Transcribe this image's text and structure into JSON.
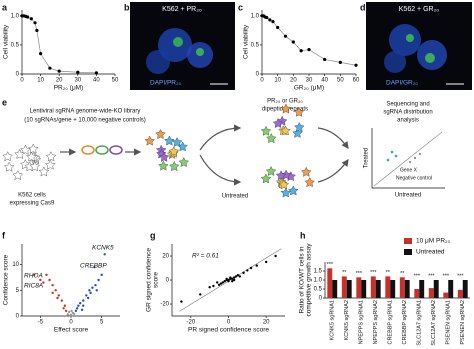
{
  "panel_labels": [
    "a",
    "b",
    "c",
    "d",
    "e",
    "f",
    "g",
    "h"
  ],
  "panel_b": {
    "title": "K562 + PR₂₀",
    "caption": "DAPI/PR₂₀"
  },
  "panel_d": {
    "title": "K562 + GR₂₀",
    "caption": "DAPI/GR₂₀"
  },
  "panel_e": {
    "library": [
      "Lentiviral sgRNA genome-wide-KO library",
      "(10 sgRNAs/gene + 10,000 negative controls)"
    ],
    "cells": [
      "K562 cells",
      "expressing Cas9"
    ],
    "treatment": [
      "PR₂₀ or GR₂₀",
      "dipeptide repeats"
    ],
    "untreated": "Untreated",
    "analysis": [
      "Sequencing and",
      "sgRNA distribution",
      "analysis"
    ],
    "plot_y": "Treated",
    "plot_x": "Untreated",
    "gene": "Gene X",
    "negative": "Negative control"
  },
  "chart_data": [
    {
      "type": "scatter",
      "curve": true,
      "xlabel": "PR₂₀ (μM)",
      "ylabel": "Cell viability",
      "xlim": [
        0,
        50
      ],
      "xticks": [
        0,
        10,
        20,
        30,
        40,
        50
      ],
      "ylim": [
        0,
        1.1
      ],
      "yticks": [
        0,
        0.5,
        {
          "value": 1,
          "label": "1.0"
        }
      ],
      "series": [
        {
          "color": "#000000",
          "x": [
            0,
            1,
            2,
            3,
            5,
            7,
            8,
            10,
            15,
            20,
            30,
            40
          ],
          "values": [
            1.0,
            1.0,
            0.99,
            0.98,
            0.95,
            0.88,
            0.75,
            0.35,
            0.1,
            0.05,
            0.03,
            0.02
          ]
        }
      ]
    },
    {
      "type": "scatter",
      "curve": true,
      "xlabel": "GR₂₀ (μM)",
      "ylabel": "Cell viability",
      "xlim": [
        0,
        60
      ],
      "xticks": [
        0,
        10,
        20,
        30,
        40,
        50,
        60
      ],
      "ylim": [
        0,
        1.1
      ],
      "yticks": [
        0,
        0.5,
        {
          "value": 1,
          "label": "1.0"
        }
      ],
      "series": [
        {
          "color": "#000000",
          "x": [
            0,
            1,
            2,
            3,
            5,
            7,
            10,
            15,
            20,
            25,
            30,
            40,
            50,
            60
          ],
          "values": [
            1.0,
            1.0,
            0.98,
            0.97,
            0.93,
            0.9,
            0.8,
            0.65,
            0.55,
            0.4,
            0.42,
            0.25,
            0.2,
            0.15
          ]
        }
      ]
    },
    {
      "type": "scatter",
      "xlabel": "Effect score",
      "ylabel": "Confidence score",
      "xlim": [
        -8,
        8
      ],
      "xticks": [
        -5,
        0,
        5
      ],
      "ylim": [
        0,
        14
      ],
      "yticks": [
        0,
        5,
        10
      ],
      "annotations": [
        "KCNK5",
        "CREBBP",
        "RHOA",
        "RIC8A"
      ],
      "series": [
        {
          "color": "#d03020",
          "x": [
            -1,
            -1.5,
            -2,
            -2.5,
            -3,
            -3.5,
            -4,
            -1.2,
            -0.8,
            -2.2,
            -3,
            -5,
            -4.5,
            -6
          ],
          "values": [
            2,
            3,
            4,
            5,
            6,
            7,
            8,
            1.5,
            1,
            3.5,
            4.5,
            7,
            6.5,
            8
          ]
        },
        {
          "color": "#2050c0",
          "x": [
            1,
            1.5,
            2,
            2.5,
            3,
            3.5,
            4,
            0.8,
            1.2,
            2.8,
            3.2,
            4.5,
            5,
            4.2,
            3.8,
            5.5,
            2,
            1.8
          ],
          "values": [
            1.5,
            2.5,
            3,
            4,
            5,
            5.5,
            6,
            1,
            2,
            3.5,
            4.5,
            7,
            8,
            5,
            9.5,
            12,
            2,
            1.2
          ]
        },
        {
          "color": "#999999",
          "x": [
            -0.5,
            0,
            0.5,
            -0.3,
            0.3,
            0.1,
            -0.1
          ],
          "values": [
            0.3,
            0.2,
            0.4,
            0.8,
            0.6,
            1,
            0.1
          ]
        }
      ]
    },
    {
      "type": "scatter",
      "fit": true,
      "xlabel": "PR signed confidence score",
      "ylabel": [
        "GR signed confidence",
        "score"
      ],
      "annotations": [
        "R² = 0.61"
      ],
      "xlim": [
        -30,
        30
      ],
      "xticks": [
        -20,
        0,
        20
      ],
      "ylim": [
        -30,
        30
      ],
      "yticks": [
        -20,
        0,
        20
      ],
      "series": [
        {
          "color": "#000000",
          "x": [
            -25,
            -15,
            -10,
            -8,
            -5,
            -3,
            -2,
            -1,
            0,
            1,
            2,
            3,
            4,
            5,
            6,
            8,
            10,
            12,
            15,
            20,
            25,
            -4,
            -6,
            2,
            -1,
            0,
            1,
            3
          ],
          "values": [
            -18,
            -12,
            -6,
            -5,
            -4,
            -2,
            -1,
            0,
            0,
            1,
            1,
            2,
            3,
            4,
            3,
            6,
            8,
            10,
            12,
            15,
            20,
            -3,
            -2,
            -1,
            1,
            -1,
            2,
            0
          ]
        }
      ]
    },
    {
      "type": "bar",
      "ylabel": [
        "Ratio of KO/WT cells in",
        "competitive growth assay"
      ],
      "ylim": [
        0,
        2
      ],
      "yticks": [
        0,
        0.5,
        {
          "value": 1,
          "label": "1.0"
        },
        1.5
      ],
      "categories": [
        "KCNK5 sgRNA1",
        "KCNK5 sgRNA2",
        "NPEPPS sgRNA1",
        "NPEPPS sgRNA2",
        "CREBBP sgRNA1",
        "CREBBP sgRNA2",
        "SLC12A7 sgRNA1",
        "SLC12A7 sgRNA2",
        "PSENEN sgRNA1",
        "PSENEN sgRNA2"
      ],
      "annotations": [
        "***",
        "**",
        "***",
        "***",
        "**",
        "**",
        "***",
        "***",
        "***",
        "***"
      ],
      "series": [
        {
          "name": "10 μM PR₂₀",
          "color": "#c8302a",
          "values": [
            1.65,
            1.2,
            1.15,
            1.2,
            1.2,
            1.15,
            0.5,
            0.55,
            0.3,
            0.45
          ]
        },
        {
          "name": "Untreated",
          "color": "#111111",
          "values": [
            1,
            1,
            1,
            1,
            1,
            1,
            1,
            1,
            1,
            1
          ]
        }
      ]
    }
  ]
}
